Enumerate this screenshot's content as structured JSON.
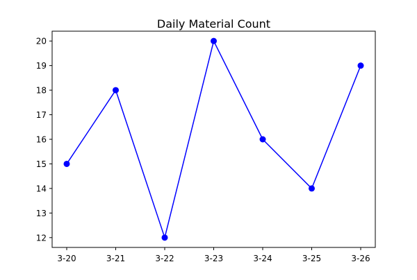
{
  "chart_data": {
    "type": "line",
    "title": "Daily Material Count",
    "xlabel": "",
    "ylabel": "",
    "categories": [
      "3-20",
      "3-21",
      "3-22",
      "3-23",
      "3-24",
      "3-25",
      "3-26"
    ],
    "values": [
      15,
      18,
      12,
      20,
      16,
      14,
      19
    ],
    "yticks": [
      12,
      13,
      14,
      15,
      16,
      17,
      18,
      19,
      20
    ],
    "ylim": [
      11.6,
      20.4
    ],
    "grid": false,
    "marker": "circle",
    "line_color": "#0000ff",
    "marker_color": "#0000ff"
  }
}
